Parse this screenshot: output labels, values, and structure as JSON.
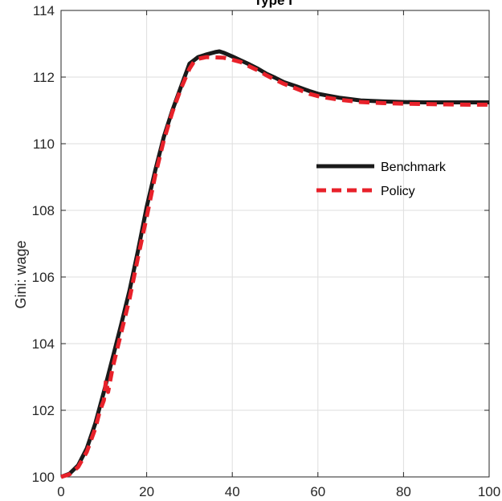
{
  "chart_data": {
    "type": "line",
    "title": "Type I",
    "xlabel": "",
    "ylabel": "Gini: wage",
    "xlim": [
      0,
      100
    ],
    "ylim": [
      100,
      114
    ],
    "xticks": [
      0,
      20,
      40,
      60,
      80,
      100
    ],
    "yticks": [
      100,
      102,
      104,
      106,
      108,
      110,
      112,
      114
    ],
    "grid": true,
    "legend_position": "center-right",
    "series": [
      {
        "name": "Benchmark",
        "color": "#1a1a1a",
        "style": "solid",
        "points": [
          [
            0,
            100.0
          ],
          [
            2,
            100.1
          ],
          [
            4,
            100.35
          ],
          [
            6,
            100.85
          ],
          [
            8,
            101.6
          ],
          [
            10,
            102.55
          ],
          [
            12,
            103.55
          ],
          [
            14,
            104.55
          ],
          [
            16,
            105.6
          ],
          [
            18,
            106.8
          ],
          [
            20,
            108.1
          ],
          [
            22,
            109.2
          ],
          [
            24,
            110.2
          ],
          [
            26,
            111.0
          ],
          [
            28,
            111.7
          ],
          [
            30,
            112.4
          ],
          [
            32,
            112.6
          ],
          [
            34,
            112.68
          ],
          [
            36,
            112.75
          ],
          [
            37,
            112.77
          ],
          [
            38,
            112.73
          ],
          [
            40,
            112.62
          ],
          [
            42,
            112.5
          ],
          [
            44,
            112.38
          ],
          [
            46,
            112.25
          ],
          [
            48,
            112.1
          ],
          [
            50,
            111.98
          ],
          [
            52,
            111.85
          ],
          [
            55,
            111.72
          ],
          [
            58,
            111.58
          ],
          [
            60,
            111.5
          ],
          [
            62,
            111.45
          ],
          [
            65,
            111.38
          ],
          [
            70,
            111.3
          ],
          [
            75,
            111.27
          ],
          [
            80,
            111.25
          ],
          [
            85,
            111.24
          ],
          [
            90,
            111.24
          ],
          [
            95,
            111.24
          ],
          [
            100,
            111.24
          ]
        ]
      },
      {
        "name": "Policy",
        "color": "#e8212a",
        "style": "dashed",
        "points": [
          [
            0,
            100.0
          ],
          [
            2,
            100.08
          ],
          [
            4,
            100.3
          ],
          [
            6,
            100.75
          ],
          [
            8,
            101.45
          ],
          [
            9,
            101.95
          ],
          [
            10,
            102.3
          ],
          [
            10.5,
            102.9
          ],
          [
            11,
            102.55
          ],
          [
            12,
            103.25
          ],
          [
            14,
            104.3
          ],
          [
            16,
            105.35
          ],
          [
            18,
            106.6
          ],
          [
            20,
            107.8
          ],
          [
            22,
            109.05
          ],
          [
            24,
            110.1
          ],
          [
            26,
            110.95
          ],
          [
            28,
            111.65
          ],
          [
            30,
            112.25
          ],
          [
            31,
            112.45
          ],
          [
            32,
            112.55
          ],
          [
            34,
            112.6
          ],
          [
            38,
            112.58
          ],
          [
            40,
            112.52
          ],
          [
            42,
            112.45
          ],
          [
            44,
            112.32
          ],
          [
            46,
            112.2
          ],
          [
            48,
            112.05
          ],
          [
            50,
            111.92
          ],
          [
            52,
            111.8
          ],
          [
            55,
            111.65
          ],
          [
            58,
            111.5
          ],
          [
            60,
            111.43
          ],
          [
            62,
            111.38
          ],
          [
            65,
            111.32
          ],
          [
            70,
            111.25
          ],
          [
            75,
            111.22
          ],
          [
            80,
            111.2
          ],
          [
            85,
            111.19
          ],
          [
            90,
            111.18
          ],
          [
            95,
            111.17
          ],
          [
            100,
            111.17
          ]
        ]
      }
    ]
  }
}
